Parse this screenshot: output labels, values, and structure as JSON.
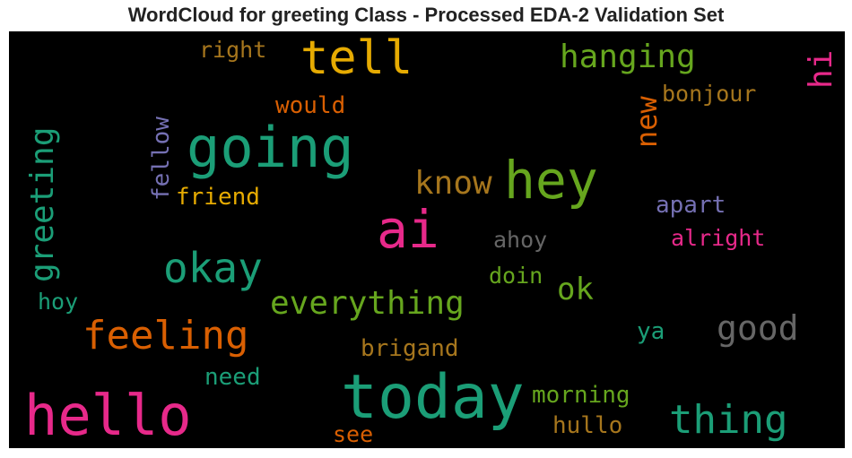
{
  "title": "WordCloud for greeting Class - Processed EDA-2 Validation Set",
  "palette": {
    "teal": "#1b9e77",
    "orange": "#d95f02",
    "purple": "#7570b3",
    "pink": "#e7298a",
    "green": "#66a61e",
    "gold": "#e6ab02",
    "brown": "#a6761d",
    "gray": "#666666"
  },
  "words": {
    "tell": "tell",
    "right": "right",
    "hanging": "hanging",
    "hi": "hi",
    "would": "would",
    "bonjour": "bonjour",
    "new": "new",
    "greeting": "greeting",
    "fellow": "fellow",
    "going": "going",
    "hey": "hey",
    "know": "know",
    "friend": "friend",
    "ai": "ai",
    "apart": "apart",
    "ahoy": "ahoy",
    "alright": "alright",
    "okay": "okay",
    "doin": "doin",
    "ok": "ok",
    "everything": "everything",
    "hoy": "hoy",
    "feeling": "feeling",
    "good": "good",
    "ya": "ya",
    "brigand": "brigand",
    "need": "need",
    "today": "today",
    "morning": "morning",
    "hello": "hello",
    "thing": "thing",
    "hullo": "hullo",
    "see": "see"
  }
}
